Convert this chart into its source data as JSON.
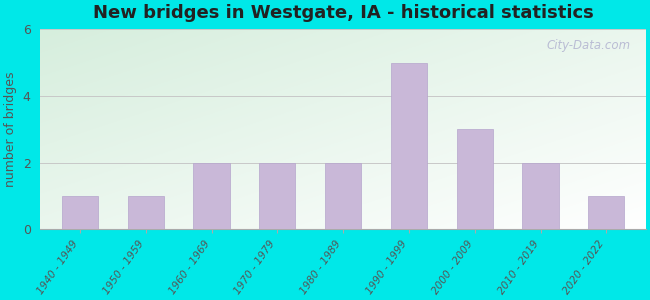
{
  "title": "New bridges in Westgate, IA - historical statistics",
  "categories": [
    "1940 - 1949",
    "1950 - 1959",
    "1960 - 1969",
    "1970 - 1979",
    "1980 - 1989",
    "1990 - 1999",
    "2000 - 2009",
    "2010 - 2019",
    "2020 - 2022"
  ],
  "values": [
    1,
    1,
    2,
    2,
    2,
    5,
    3,
    2,
    1
  ],
  "bar_color": "#c9b8d8",
  "bar_edgecolor": "#b5a5cc",
  "ylabel": "number of bridges",
  "ylim": [
    0,
    6
  ],
  "yticks": [
    0,
    2,
    4,
    6
  ],
  "background_outer": "#00e8e8",
  "grad_color_top_left": "#d6eedd",
  "grad_color_bottom_right": "#f0f5e8",
  "title_fontsize": 13,
  "title_color": "#222222",
  "watermark_text": "City-Data.com",
  "grid_color": "#c8c8c8",
  "tick_label_color": "#555555",
  "ylabel_color": "#555555"
}
